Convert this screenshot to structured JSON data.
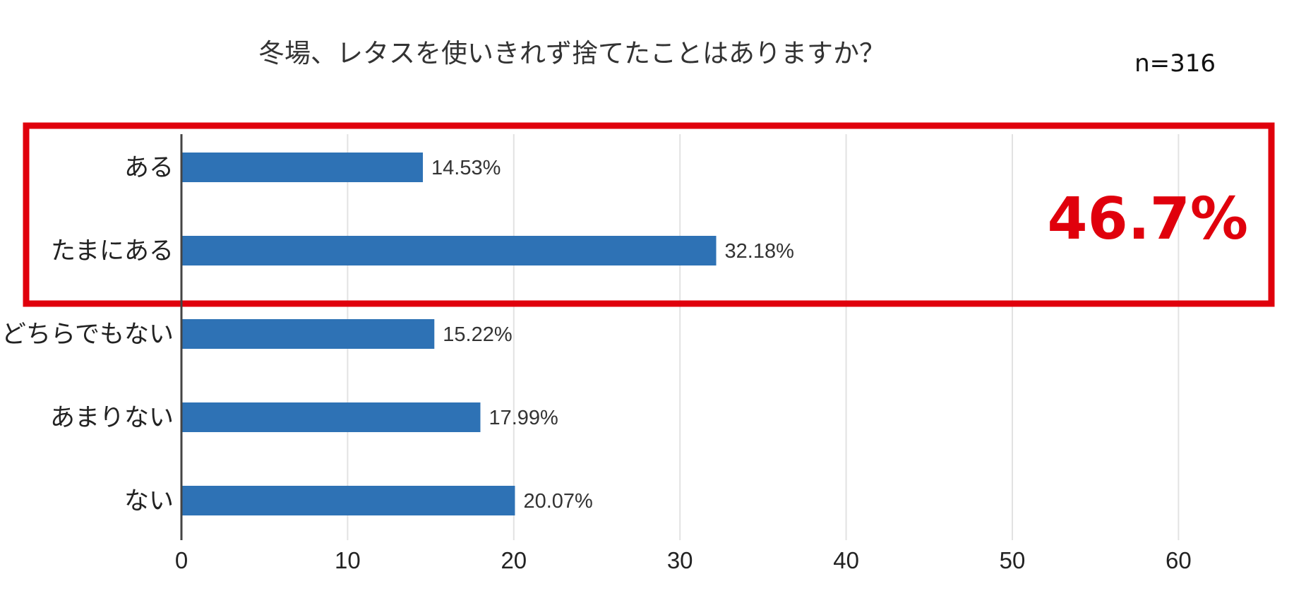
{
  "colors": {
    "bar": "#2E72B5",
    "highlight": "#E0000C",
    "grid": "#E2E2E2",
    "axis": "#444444"
  },
  "annotations": {
    "sample_size": "n=316",
    "highlight_value": "46.7%"
  },
  "chart_data": {
    "type": "bar",
    "orientation": "horizontal",
    "title": "冬場、レタスを使いきれず捨てたことはありますか？",
    "categories": [
      "ある",
      "たまにある",
      "どちらでもない",
      "あまりない",
      "ない"
    ],
    "values": [
      14.53,
      32.18,
      15.22,
      17.99,
      20.07
    ],
    "value_labels": [
      "14.53%",
      "32.18%",
      "15.22%",
      "17.99%",
      "20.07%"
    ],
    "xlim": [
      0,
      65
    ],
    "xticks": [
      0,
      10,
      20,
      30,
      40,
      50,
      60
    ],
    "xtick_labels": [
      "0",
      "10",
      "20",
      "30",
      "40",
      "50",
      "60"
    ],
    "xlabel": "",
    "ylabel": "",
    "grid": "vertical",
    "highlighted_categories": [
      "ある",
      "たまにある"
    ]
  }
}
